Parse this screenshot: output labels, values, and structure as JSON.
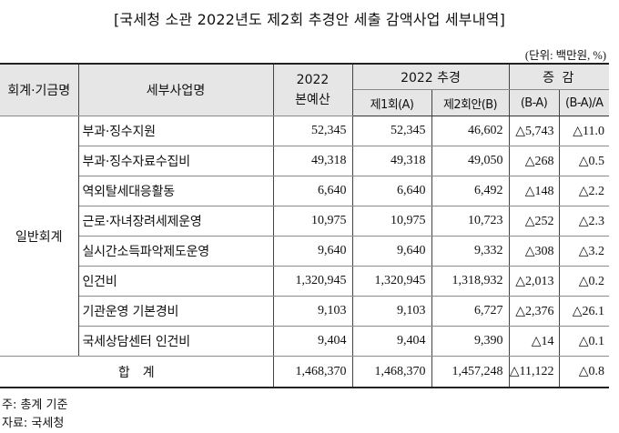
{
  "title": "[국세청 소관 2022년도 제2회 추경안 세출 감액사업 세부내역]",
  "unit": "(단위: 백만원, %)",
  "headers": {
    "col_category": "회계·기금명",
    "col_project": "세부사업명",
    "col_budget_line1": "2022",
    "col_budget_line2": "본예산",
    "col_supp": "2022 추경",
    "col_change": "증 감",
    "col_supp1": "제1회(A)",
    "col_supp2": "제2회안(B)",
    "col_diff": "(B-A)",
    "col_rate": "(B-A)/A"
  },
  "category": "일반회계",
  "rows": [
    {
      "name": "부과·징수지원",
      "budget": "52,345",
      "supp1": "52,345",
      "supp2": "46,602",
      "diff": "△5,743",
      "rate": "△11.0"
    },
    {
      "name": "부과·징수자료수집비",
      "budget": "49,318",
      "supp1": "49,318",
      "supp2": "49,050",
      "diff": "△268",
      "rate": "△0.5"
    },
    {
      "name": "역외탈세대응활동",
      "budget": "6,640",
      "supp1": "6,640",
      "supp2": "6,492",
      "diff": "△148",
      "rate": "△2.2"
    },
    {
      "name": "근로·자녀장려세제운영",
      "budget": "10,975",
      "supp1": "10,975",
      "supp2": "10,723",
      "diff": "△252",
      "rate": "△2.3"
    },
    {
      "name": "실시간소득파악제도운영",
      "budget": "9,640",
      "supp1": "9,640",
      "supp2": "9,332",
      "diff": "△308",
      "rate": "△3.2"
    },
    {
      "name": "인건비",
      "budget": "1,320,945",
      "supp1": "1,320,945",
      "supp2": "1,318,932",
      "diff": "△2,013",
      "rate": "△0.2"
    },
    {
      "name": "기관운영 기본경비",
      "budget": "9,103",
      "supp1": "9,103",
      "supp2": "6,727",
      "diff": "△2,376",
      "rate": "△26.1"
    },
    {
      "name": "국세상담센터 인건비",
      "budget": "9,404",
      "supp1": "9,404",
      "supp2": "9,390",
      "diff": "△14",
      "rate": "△0.1"
    }
  ],
  "total": {
    "label": "합계",
    "budget": "1,468,370",
    "supp1": "1,468,370",
    "supp2": "1,457,248",
    "diff": "△11,122",
    "rate": "△0.8"
  },
  "notes": {
    "note": "주: 총계 기준",
    "source": "자료: 국세청"
  }
}
